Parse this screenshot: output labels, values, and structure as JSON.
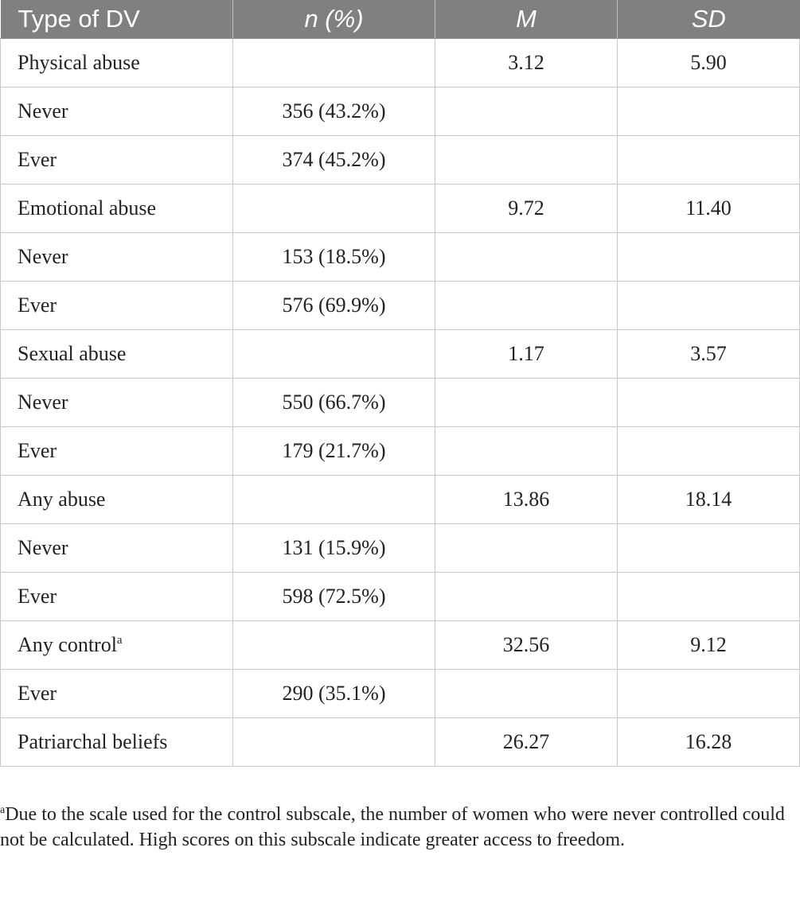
{
  "table": {
    "headers": {
      "type": "Type of DV",
      "n_pct": "n (%)",
      "mean": "M",
      "sd": "SD"
    },
    "rows": [
      {
        "label": "Physical abuse",
        "note": "",
        "n": "",
        "m": "3.12",
        "sd": "5.90"
      },
      {
        "label": "Never",
        "note": "",
        "n": "356 (43.2%)",
        "m": "",
        "sd": ""
      },
      {
        "label": "Ever",
        "note": "",
        "n": "374 (45.2%)",
        "m": "",
        "sd": ""
      },
      {
        "label": "Emotional abuse",
        "note": "",
        "n": "",
        "m": "9.72",
        "sd": "11.40"
      },
      {
        "label": "Never",
        "note": "",
        "n": "153 (18.5%)",
        "m": "",
        "sd": ""
      },
      {
        "label": "Ever",
        "note": "",
        "n": "576 (69.9%)",
        "m": "",
        "sd": ""
      },
      {
        "label": "Sexual abuse",
        "note": "",
        "n": "",
        "m": "1.17",
        "sd": "3.57"
      },
      {
        "label": "Never",
        "note": "",
        "n": "550 (66.7%)",
        "m": "",
        "sd": ""
      },
      {
        "label": "Ever",
        "note": "",
        "n": "179 (21.7%)",
        "m": "",
        "sd": ""
      },
      {
        "label": "Any abuse",
        "note": "",
        "n": "",
        "m": "13.86",
        "sd": "18.14"
      },
      {
        "label": "Never",
        "note": "",
        "n": "131 (15.9%)",
        "m": "",
        "sd": ""
      },
      {
        "label": "Ever",
        "note": "",
        "n": "598 (72.5%)",
        "m": "",
        "sd": ""
      },
      {
        "label": "Any control",
        "note": "a",
        "n": "",
        "m": "32.56",
        "sd": "9.12"
      },
      {
        "label": "Ever",
        "note": "",
        "n": "290 (35.1%)",
        "m": "",
        "sd": ""
      },
      {
        "label": "Patriarchal beliefs",
        "note": "",
        "n": "",
        "m": "26.27",
        "sd": "16.28"
      }
    ]
  },
  "footnote": {
    "marker": "a",
    "text": "Due to the scale used for the control subscale, the number of women who were never controlled could not be calculated. High scores on this subscale indicate greater access to freedom."
  },
  "colors": {
    "header_bg": "#808080",
    "header_text": "#ffffff",
    "grid": "#c8c8c8"
  }
}
